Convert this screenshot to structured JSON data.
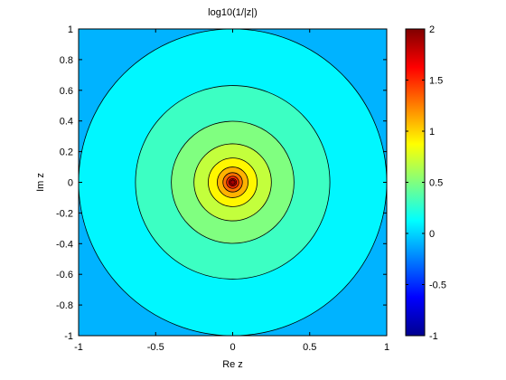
{
  "chart_data": {
    "type": "contour",
    "title": "log10(1/|z|)",
    "xlabel": "Re z",
    "ylabel": "Im z",
    "xlim": [
      -1,
      1
    ],
    "ylim": [
      -1,
      1
    ],
    "xticks": [
      -1,
      -0.5,
      0,
      0.5,
      1
    ],
    "xtick_labels": [
      "-1",
      "-0.5",
      "0",
      "0.5",
      "1"
    ],
    "yticks": [
      1,
      0.8,
      0.6,
      0.4,
      0.2,
      0,
      -0.2,
      -0.4,
      -0.6,
      -0.8,
      -1
    ],
    "ytick_labels": [
      "1",
      "0.8",
      "0.6",
      "0.4",
      "0.2",
      "0",
      "-0.2",
      "-0.4",
      "-0.6",
      "-0.8",
      "-1"
    ],
    "colorbar": {
      "range": [
        -1,
        2
      ],
      "ticks": [
        2,
        1.5,
        1,
        0.5,
        0,
        -0.5,
        -1
      ],
      "tick_labels": [
        "2",
        "1.5",
        "1",
        "0.5",
        "0",
        "-0.5",
        "-1"
      ],
      "colormap": "jet"
    },
    "contour_levels": [
      0,
      0.2,
      0.4,
      0.6,
      0.8,
      1.0,
      1.2,
      1.4,
      1.6,
      1.8
    ],
    "grid": false,
    "colors": {
      "dark_blue": "#00008f",
      "blue": "#0000ff",
      "cyan": "#00ffff",
      "yellow": "#ffff00",
      "red": "#ff0000",
      "dark_red": "#800000",
      "contour_line": "#000000"
    }
  }
}
